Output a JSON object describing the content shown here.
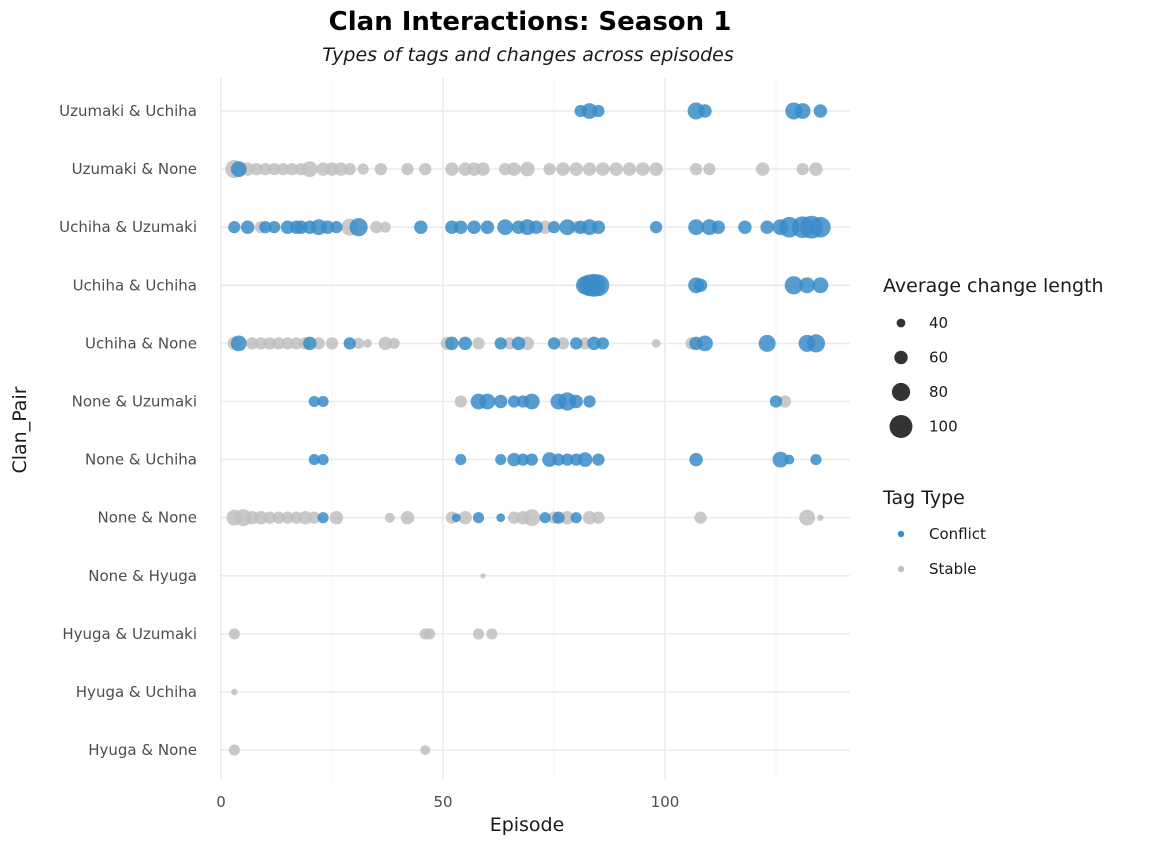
{
  "chart_data": {
    "type": "scatter",
    "title": "Clan Interactions: Season 1",
    "subtitle": "Types of tags and changes across episodes",
    "xlabel": "Episode",
    "ylabel": "Clan_Pair",
    "xlim": [
      -3,
      142
    ],
    "x_ticks": [
      0,
      50,
      100
    ],
    "grid": true,
    "categories": [
      "Uzumaki & Uchiha",
      "Uzumaki & None",
      "Uchiha & Uzumaki",
      "Uchiha & Uchiha",
      "Uchiha & None",
      "None & Uzumaki",
      "None & Uchiha",
      "None & None",
      "None & Hyuga",
      "Hyuga & Uzumaki",
      "Hyuga & Uchiha",
      "Hyuga & None"
    ],
    "colors": {
      "Conflict": "#3a8cc8",
      "Stable": "#c0c0c0"
    },
    "size_legend": {
      "title": "Average change length",
      "values": [
        40,
        60,
        80,
        100
      ]
    },
    "color_legend": {
      "title": "Tag Type",
      "items": [
        "Conflict",
        "Stable"
      ]
    },
    "series": [
      {
        "name": "Conflict",
        "points": [
          [
            "Uzumaki & Uchiha",
            81,
            55
          ],
          [
            "Uzumaki & Uchiha",
            83,
            70
          ],
          [
            "Uzumaki & Uchiha",
            85,
            55
          ],
          [
            "Uzumaki & Uchiha",
            107,
            75
          ],
          [
            "Uzumaki & Uchiha",
            109,
            60
          ],
          [
            "Uzumaki & Uchiha",
            129,
            75
          ],
          [
            "Uzumaki & Uchiha",
            131,
            70
          ],
          [
            "Uzumaki & Uchiha",
            135,
            60
          ],
          [
            "Uzumaki & None",
            4,
            70
          ],
          [
            "Uchiha & Uzumaki",
            3,
            55
          ],
          [
            "Uchiha & Uzumaki",
            6,
            60
          ],
          [
            "Uchiha & Uzumaki",
            10,
            55
          ],
          [
            "Uchiha & Uzumaki",
            12,
            55
          ],
          [
            "Uchiha & Uzumaki",
            15,
            60
          ],
          [
            "Uchiha & Uzumaki",
            17,
            60
          ],
          [
            "Uchiha & Uzumaki",
            18,
            60
          ],
          [
            "Uchiha & Uzumaki",
            20,
            60
          ],
          [
            "Uchiha & Uzumaki",
            22,
            70
          ],
          [
            "Uchiha & Uzumaki",
            24,
            60
          ],
          [
            "Uchiha & Uzumaki",
            26,
            55
          ],
          [
            "Uchiha & Uzumaki",
            31,
            80
          ],
          [
            "Uchiha & Uzumaki",
            45,
            60
          ],
          [
            "Uchiha & Uzumaki",
            52,
            60
          ],
          [
            "Uchiha & Uzumaki",
            54,
            60
          ],
          [
            "Uchiha & Uzumaki",
            57,
            60
          ],
          [
            "Uchiha & Uzumaki",
            60,
            60
          ],
          [
            "Uchiha & Uzumaki",
            64,
            70
          ],
          [
            "Uchiha & Uzumaki",
            67,
            60
          ],
          [
            "Uchiha & Uzumaki",
            69,
            70
          ],
          [
            "Uchiha & Uzumaki",
            71,
            60
          ],
          [
            "Uchiha & Uzumaki",
            75,
            55
          ],
          [
            "Uchiha & Uzumaki",
            78,
            70
          ],
          [
            "Uchiha & Uzumaki",
            81,
            60
          ],
          [
            "Uchiha & Uzumaki",
            83,
            70
          ],
          [
            "Uchiha & Uzumaki",
            85,
            60
          ],
          [
            "Uchiha & Uzumaki",
            98,
            55
          ],
          [
            "Uchiha & Uzumaki",
            107,
            70
          ],
          [
            "Uchiha & Uzumaki",
            110,
            70
          ],
          [
            "Uchiha & Uzumaki",
            112,
            60
          ],
          [
            "Uchiha & Uzumaki",
            118,
            60
          ],
          [
            "Uchiha & Uzumaki",
            123,
            60
          ],
          [
            "Uchiha & Uzumaki",
            126,
            70
          ],
          [
            "Uchiha & Uzumaki",
            128,
            90
          ],
          [
            "Uchiha & Uzumaki",
            131,
            95
          ],
          [
            "Uchiha & Uzumaki",
            133,
            100
          ],
          [
            "Uchiha & Uzumaki",
            135,
            90
          ],
          [
            "Uchiha & Uchiha",
            82,
            80
          ],
          [
            "Uchiha & Uchiha",
            83,
            95
          ],
          [
            "Uchiha & Uchiha",
            84,
            100
          ],
          [
            "Uchiha & Uchiha",
            85,
            95
          ],
          [
            "Uchiha & Uchiha",
            107,
            70
          ],
          [
            "Uchiha & Uchiha",
            108,
            60
          ],
          [
            "Uchiha & Uchiha",
            129,
            80
          ],
          [
            "Uchiha & Uchiha",
            132,
            70
          ],
          [
            "Uchiha & Uchiha",
            135,
            70
          ],
          [
            "Uchiha & None",
            4,
            70
          ],
          [
            "Uchiha & None",
            20,
            60
          ],
          [
            "Uchiha & None",
            29,
            55
          ],
          [
            "Uchiha & None",
            52,
            60
          ],
          [
            "Uchiha & None",
            55,
            60
          ],
          [
            "Uchiha & None",
            63,
            55
          ],
          [
            "Uchiha & None",
            67,
            60
          ],
          [
            "Uchiha & None",
            75,
            55
          ],
          [
            "Uchiha & None",
            80,
            55
          ],
          [
            "Uchiha & None",
            84,
            60
          ],
          [
            "Uchiha & None",
            86,
            55
          ],
          [
            "Uchiha & None",
            107,
            60
          ],
          [
            "Uchiha & None",
            109,
            70
          ],
          [
            "Uchiha & None",
            123,
            75
          ],
          [
            "Uchiha & None",
            132,
            75
          ],
          [
            "Uchiha & None",
            134,
            80
          ],
          [
            "None & Uzumaki",
            21,
            50
          ],
          [
            "None & Uzumaki",
            23,
            50
          ],
          [
            "None & Uzumaki",
            58,
            70
          ],
          [
            "None & Uzumaki",
            60,
            70
          ],
          [
            "None & Uzumaki",
            63,
            60
          ],
          [
            "None & Uzumaki",
            66,
            55
          ],
          [
            "None & Uzumaki",
            68,
            55
          ],
          [
            "None & Uzumaki",
            70,
            70
          ],
          [
            "None & Uzumaki",
            76,
            70
          ],
          [
            "None & Uzumaki",
            78,
            80
          ],
          [
            "None & Uzumaki",
            80,
            60
          ],
          [
            "None & Uzumaki",
            83,
            55
          ],
          [
            "None & Uzumaki",
            125,
            55
          ],
          [
            "None & Uchiha",
            21,
            50
          ],
          [
            "None & Uchiha",
            23,
            50
          ],
          [
            "None & Uchiha",
            54,
            50
          ],
          [
            "None & Uchiha",
            63,
            50
          ],
          [
            "None & Uchiha",
            66,
            60
          ],
          [
            "None & Uchiha",
            68,
            55
          ],
          [
            "None & Uchiha",
            70,
            55
          ],
          [
            "None & Uchiha",
            74,
            65
          ],
          [
            "None & Uchiha",
            76,
            55
          ],
          [
            "None & Uchiha",
            78,
            55
          ],
          [
            "None & Uchiha",
            80,
            55
          ],
          [
            "None & Uchiha",
            82,
            65
          ],
          [
            "None & Uchiha",
            85,
            55
          ],
          [
            "None & Uchiha",
            107,
            60
          ],
          [
            "None & Uchiha",
            126,
            70
          ],
          [
            "None & Uchiha",
            128,
            45
          ],
          [
            "None & Uchiha",
            134,
            50
          ],
          [
            "None & None",
            23,
            50
          ],
          [
            "None & None",
            53,
            40
          ],
          [
            "None & None",
            58,
            50
          ],
          [
            "None & None",
            63,
            40
          ],
          [
            "None & None",
            73,
            50
          ],
          [
            "None & None",
            76,
            55
          ],
          [
            "None & None",
            80,
            50
          ]
        ]
      },
      {
        "name": "Stable",
        "points": [
          [
            "Uzumaki & None",
            3,
            80
          ],
          [
            "Uzumaki & None",
            6,
            60
          ],
          [
            "Uzumaki & None",
            8,
            55
          ],
          [
            "Uzumaki & None",
            10,
            55
          ],
          [
            "Uzumaki & None",
            12,
            55
          ],
          [
            "Uzumaki & None",
            14,
            55
          ],
          [
            "Uzumaki & None",
            16,
            55
          ],
          [
            "Uzumaki & None",
            18,
            55
          ],
          [
            "Uzumaki & None",
            20,
            70
          ],
          [
            "Uzumaki & None",
            23,
            60
          ],
          [
            "Uzumaki & None",
            25,
            60
          ],
          [
            "Uzumaki & None",
            27,
            60
          ],
          [
            "Uzumaki & None",
            29,
            55
          ],
          [
            "Uzumaki & None",
            32,
            50
          ],
          [
            "Uzumaki & None",
            36,
            55
          ],
          [
            "Uzumaki & None",
            42,
            55
          ],
          [
            "Uzumaki & None",
            46,
            55
          ],
          [
            "Uzumaki & None",
            52,
            60
          ],
          [
            "Uzumaki & None",
            55,
            60
          ],
          [
            "Uzumaki & None",
            57,
            60
          ],
          [
            "Uzumaki & None",
            59,
            60
          ],
          [
            "Uzumaki & None",
            64,
            55
          ],
          [
            "Uzumaki & None",
            66,
            60
          ],
          [
            "Uzumaki & None",
            69,
            65
          ],
          [
            "Uzumaki & None",
            74,
            55
          ],
          [
            "Uzumaki & None",
            77,
            60
          ],
          [
            "Uzumaki & None",
            80,
            60
          ],
          [
            "Uzumaki & None",
            83,
            60
          ],
          [
            "Uzumaki & None",
            86,
            60
          ],
          [
            "Uzumaki & None",
            89,
            60
          ],
          [
            "Uzumaki & None",
            92,
            60
          ],
          [
            "Uzumaki & None",
            95,
            60
          ],
          [
            "Uzumaki & None",
            98,
            60
          ],
          [
            "Uzumaki & None",
            107,
            55
          ],
          [
            "Uzumaki & None",
            110,
            55
          ],
          [
            "Uzumaki & None",
            122,
            60
          ],
          [
            "Uzumaki & None",
            131,
            55
          ],
          [
            "Uzumaki & None",
            134,
            60
          ],
          [
            "Uchiha & Uzumaki",
            9,
            55
          ],
          [
            "Uchiha & Uzumaki",
            29,
            75
          ],
          [
            "Uchiha & Uzumaki",
            35,
            55
          ],
          [
            "Uchiha & Uzumaki",
            37,
            50
          ],
          [
            "Uchiha & Uzumaki",
            73,
            60
          ],
          [
            "Uchiha & Uzumaki",
            80,
            55
          ],
          [
            "Uchiha & None",
            3,
            60
          ],
          [
            "Uchiha & None",
            7,
            55
          ],
          [
            "Uchiha & None",
            9,
            55
          ],
          [
            "Uchiha & None",
            11,
            55
          ],
          [
            "Uchiha & None",
            13,
            55
          ],
          [
            "Uchiha & None",
            15,
            55
          ],
          [
            "Uchiha & None",
            17,
            55
          ],
          [
            "Uchiha & None",
            19,
            55
          ],
          [
            "Uchiha & None",
            22,
            55
          ],
          [
            "Uchiha & None",
            25,
            55
          ],
          [
            "Uchiha & None",
            31,
            50
          ],
          [
            "Uchiha & None",
            33,
            40
          ],
          [
            "Uchiha & None",
            37,
            60
          ],
          [
            "Uchiha & None",
            39,
            50
          ],
          [
            "Uchiha & None",
            51,
            60
          ],
          [
            "Uchiha & None",
            58,
            55
          ],
          [
            "Uchiha & None",
            65,
            55
          ],
          [
            "Uchiha & None",
            69,
            60
          ],
          [
            "Uchiha & None",
            77,
            55
          ],
          [
            "Uchiha & None",
            82,
            55
          ],
          [
            "Uchiha & None",
            98,
            40
          ],
          [
            "Uchiha & None",
            106,
            55
          ],
          [
            "None & Uzumaki",
            54,
            55
          ],
          [
            "None & Uzumaki",
            127,
            55
          ],
          [
            "None & None",
            3,
            70
          ],
          [
            "None & None",
            5,
            75
          ],
          [
            "None & None",
            7,
            60
          ],
          [
            "None & None",
            9,
            60
          ],
          [
            "None & None",
            11,
            55
          ],
          [
            "None & None",
            13,
            55
          ],
          [
            "None & None",
            15,
            55
          ],
          [
            "None & None",
            17,
            55
          ],
          [
            "None & None",
            19,
            60
          ],
          [
            "None & None",
            21,
            55
          ],
          [
            "None & None",
            26,
            60
          ],
          [
            "None & None",
            38,
            45
          ],
          [
            "None & None",
            42,
            60
          ],
          [
            "None & None",
            52,
            55
          ],
          [
            "None & None",
            55,
            60
          ],
          [
            "None & None",
            66,
            55
          ],
          [
            "None & None",
            68,
            60
          ],
          [
            "None & None",
            70,
            75
          ],
          [
            "None & None",
            75,
            55
          ],
          [
            "None & None",
            78,
            60
          ],
          [
            "None & None",
            83,
            60
          ],
          [
            "None & None",
            85,
            55
          ],
          [
            "None & None",
            108,
            55
          ],
          [
            "None & None",
            132,
            70
          ],
          [
            "None & None",
            135,
            30
          ],
          [
            "None & Hyuga",
            59,
            25
          ],
          [
            "Hyuga & Uzumaki",
            3,
            50
          ],
          [
            "Hyuga & Uzumaki",
            46,
            50
          ],
          [
            "Hyuga & Uzumaki",
            47,
            50
          ],
          [
            "Hyuga & Uzumaki",
            58,
            50
          ],
          [
            "Hyuga & Uzumaki",
            61,
            50
          ],
          [
            "Hyuga & Uchiha",
            3,
            30
          ],
          [
            "Hyuga & None",
            3,
            50
          ],
          [
            "Hyuga & None",
            46,
            45
          ]
        ]
      }
    ]
  }
}
